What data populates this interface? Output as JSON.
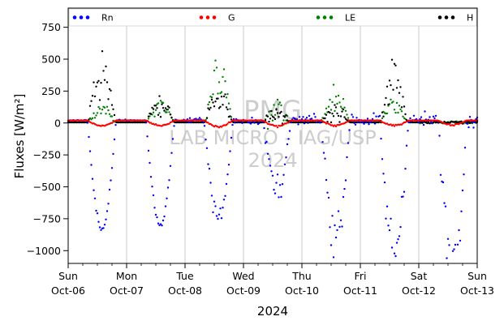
{
  "chart_data": {
    "type": "scatter",
    "title": "",
    "xlabel": "2024",
    "ylabel": "Fluxes [W/m²]",
    "ylim": [
      -1100,
      900
    ],
    "yticks": [
      750,
      500,
      250,
      0,
      -250,
      -500,
      -750,
      -1000
    ],
    "xlim_days": [
      0,
      7
    ],
    "xticks": [
      {
        "day": "Sun",
        "date": "Oct-06"
      },
      {
        "day": "Mon",
        "date": "Oct-07"
      },
      {
        "day": "Tue",
        "date": "Oct-08"
      },
      {
        "day": "Wed",
        "date": "Oct-09"
      },
      {
        "day": "Thu",
        "date": "Oct-10"
      },
      {
        "day": "Fri",
        "date": "Oct-11"
      },
      {
        "day": "Sat",
        "date": "Oct-12"
      },
      {
        "day": "Sun",
        "date": "Oct-13"
      }
    ],
    "grid": "vertical",
    "legend_position": "top",
    "watermark": [
      "PMG",
      "LAB MICRO - IAG/USP",
      "2024"
    ],
    "series": [
      {
        "name": "Rn",
        "color": "#0000ff",
        "daily_min": [
          -830,
          -800,
          -750,
          -500,
          -880,
          -1000,
          -1050
        ],
        "noise": [
          15,
          15,
          60,
          70,
          110,
          120,
          130
        ]
      },
      {
        "name": "G",
        "color": "#ff0000",
        "daily_min": [
          -20,
          -20,
          -30,
          -25,
          -20,
          -20,
          -15
        ],
        "noise": [
          3,
          3,
          6,
          5,
          4,
          4,
          3
        ]
      },
      {
        "name": "LE",
        "color": "#008000",
        "daily_max": [
          130,
          170,
          470,
          150,
          280,
          180,
          0
        ],
        "noise": [
          35,
          40,
          110,
          90,
          80,
          60,
          0
        ]
      },
      {
        "name": "H",
        "color": "#000000",
        "daily_max": [
          480,
          200,
          270,
          80,
          130,
          430,
          0
        ],
        "noise": [
          110,
          60,
          80,
          50,
          50,
          110,
          0
        ]
      }
    ]
  }
}
